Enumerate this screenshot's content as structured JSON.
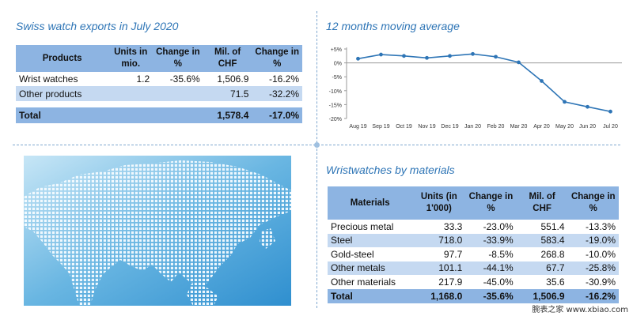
{
  "exports": {
    "title": "Swiss watch exports in July 2020",
    "headers": [
      "Products",
      "Units in mio.",
      "Change in %",
      "Mil. of CHF",
      "Change in %"
    ],
    "rows": [
      [
        "Wrist watches",
        "1.2",
        "-35.6%",
        "1,506.9",
        "-16.2%"
      ],
      [
        "Other products",
        "",
        "",
        "71.5",
        "-32.2%"
      ]
    ],
    "total": [
      "Total",
      "",
      "",
      "1,578.4",
      "-17.0%"
    ]
  },
  "chart_data": {
    "type": "line",
    "title": "12 months moving average",
    "categories": [
      "Aug 19",
      "Sep 19",
      "Oct 19",
      "Nov 19",
      "Dec 19",
      "Jan 20",
      "Feb 20",
      "Mar 20",
      "Apr 20",
      "May 20",
      "Jun 20",
      "Jul 20"
    ],
    "series": [
      {
        "values": [
          1.5,
          3.0,
          2.5,
          1.8,
          2.5,
          3.2,
          2.2,
          0.2,
          -6.5,
          -14.0,
          -15.8,
          -17.5
        ]
      }
    ],
    "yticks": [
      "+5%",
      "0%",
      "-5%",
      "-10%",
      "-15%",
      "-20%"
    ],
    "ylim": [
      -20,
      5
    ],
    "grid": false,
    "color": "#2e75b6"
  },
  "materials": {
    "title": "Wristwatches by materials",
    "headers": [
      "Materials",
      "Units (in 1'000)",
      "Change in %",
      "Mil. of CHF",
      "Change in %"
    ],
    "rows": [
      [
        "Precious metal",
        "33.3",
        "-23.0%",
        "551.4",
        "-13.3%"
      ],
      [
        "Steel",
        "718.0",
        "-33.9%",
        "583.4",
        "-19.0%"
      ],
      [
        "Gold-steel",
        "97.7",
        "-8.5%",
        "268.8",
        "-10.0%"
      ],
      [
        "Other metals",
        "101.1",
        "-44.1%",
        "67.7",
        "-25.8%"
      ],
      [
        "Other materials",
        "217.9",
        "-45.0%",
        "35.6",
        "-30.9%"
      ]
    ],
    "total": [
      "Total",
      "1,168.0",
      "-35.6%",
      "1,506.9",
      "-16.2%"
    ]
  },
  "watermark": "腕表之家 www.xbiao.com",
  "colors": {
    "accent": "#2e75b6",
    "header": "#8db4e2",
    "shade": "#c5d9f1"
  }
}
